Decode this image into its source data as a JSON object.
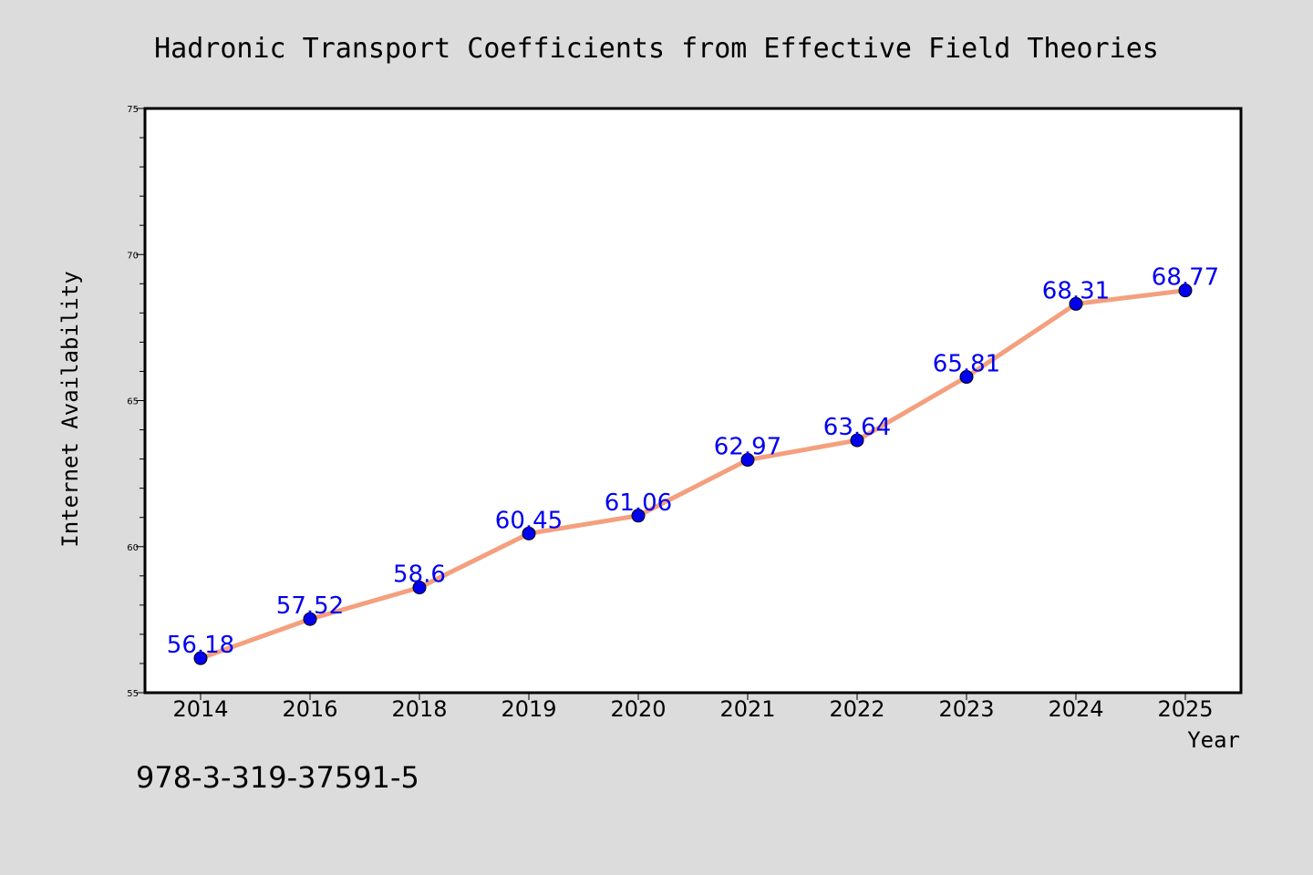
{
  "chart_data": {
    "type": "line",
    "title": "Hadronic Transport Coefficients from Effective Field Theories",
    "xlabel": "Year",
    "ylabel": "Internet Availability",
    "categories": [
      "2014",
      "2016",
      "2018",
      "2019",
      "2020",
      "2021",
      "2022",
      "2023",
      "2024",
      "2025"
    ],
    "series": [
      {
        "values": [
          56.18,
          57.52,
          58.6,
          60.45,
          61.06,
          62.97,
          63.64,
          65.81,
          68.31,
          68.77
        ],
        "data_labels": [
          "56.18",
          "57.52",
          "58.6",
          "60.45",
          "61.06",
          "62.97",
          "63.64",
          "65.81",
          "68.31",
          "68.77"
        ],
        "line_color": "#f4a07e",
        "marker_color": "#0000ee",
        "label_color": "#0000ee"
      }
    ],
    "ylim": [
      55,
      75
    ],
    "yticks": [
      "55",
      "60",
      "65",
      "70",
      "75"
    ],
    "grid": false,
    "legend": "none"
  },
  "footer_text": "978-3-319-37591-5",
  "colors": {
    "background": "#dcdcdc",
    "plot_background": "#ffffff",
    "axis": "#000000"
  }
}
